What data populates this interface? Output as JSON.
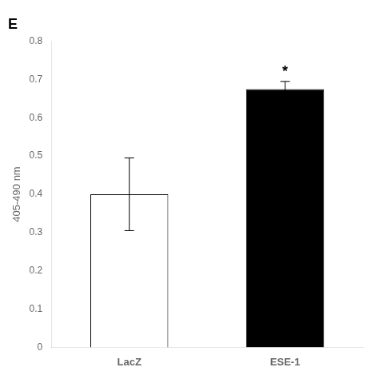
{
  "chart_data": {
    "type": "bar",
    "title": "E",
    "y_label": "405-490 nm",
    "categories": [
      "LacZ",
      "ESE-1"
    ],
    "values": [
      0.4,
      0.675
    ],
    "errors": [
      0.095,
      0.02
    ],
    "colors": [
      "white",
      "black"
    ],
    "ylim": [
      0,
      0.8
    ],
    "yticks": [
      0,
      0.1,
      0.2,
      0.3,
      0.4,
      0.5,
      0.6,
      0.7,
      0.8
    ],
    "grid": false,
    "annotations": [
      {
        "text": "*",
        "category": "ESE-1"
      }
    ]
  }
}
